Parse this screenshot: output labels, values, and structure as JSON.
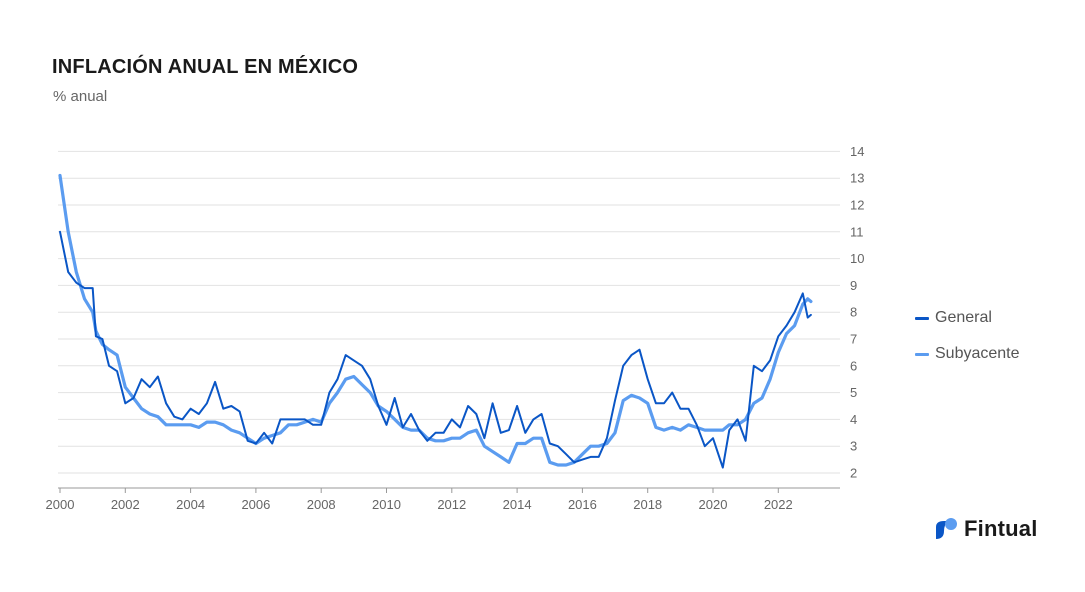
{
  "title": "INFLACIÓN ANUAL EN MÉXICO",
  "subtitle": "% anual",
  "brand": {
    "name": "Fintual",
    "logo_icon": "fintual-logo-icon"
  },
  "colors": {
    "general": "#0a56c6",
    "subyacente": "#5b9cf0",
    "grid": "#e2e2e2",
    "axis": "#999999"
  },
  "legend": [
    {
      "label": "General",
      "color": "#0a56c6"
    },
    {
      "label": "Subyacente",
      "color": "#5b9cf0"
    }
  ],
  "chart_data": {
    "type": "line",
    "title": "INFLACIÓN ANUAL EN MÉXICO",
    "ylabel": "% anual",
    "xlabel": "",
    "xlim": [
      2000,
      2023.5
    ],
    "ylim": [
      1.5,
      14
    ],
    "y_ticks": [
      "2",
      "3",
      "4",
      "5",
      "6",
      "7",
      "8",
      "9",
      "10",
      "11",
      "12",
      "13",
      "14"
    ],
    "x_ticks": [
      "2000",
      "2002",
      "2004",
      "2006",
      "2008",
      "2010",
      "2012",
      "2014",
      "2016",
      "2018",
      "2020",
      "2022"
    ],
    "grid": true,
    "legend_position": "right",
    "series": [
      {
        "name": "General",
        "x": [
          2000.0,
          2000.25,
          2000.5,
          2000.75,
          2001.0,
          2001.1,
          2001.3,
          2001.5,
          2001.75,
          2002.0,
          2002.25,
          2002.5,
          2002.75,
          2003.0,
          2003.25,
          2003.5,
          2003.75,
          2004.0,
          2004.25,
          2004.5,
          2004.75,
          2005.0,
          2005.25,
          2005.5,
          2005.75,
          2006.0,
          2006.25,
          2006.5,
          2006.75,
          2007.0,
          2007.25,
          2007.5,
          2007.75,
          2008.0,
          2008.25,
          2008.5,
          2008.75,
          2009.0,
          2009.25,
          2009.5,
          2009.75,
          2010.0,
          2010.25,
          2010.5,
          2010.75,
          2011.0,
          2011.25,
          2011.5,
          2011.75,
          2012.0,
          2012.25,
          2012.5,
          2012.75,
          2013.0,
          2013.25,
          2013.5,
          2013.75,
          2014.0,
          2014.25,
          2014.5,
          2014.75,
          2015.0,
          2015.25,
          2015.5,
          2015.75,
          2016.0,
          2016.25,
          2016.5,
          2016.75,
          2017.0,
          2017.25,
          2017.5,
          2017.75,
          2018.0,
          2018.25,
          2018.5,
          2018.75,
          2019.0,
          2019.25,
          2019.5,
          2019.75,
          2020.0,
          2020.3,
          2020.5,
          2020.75,
          2021.0,
          2021.25,
          2021.5,
          2021.75,
          2022.0,
          2022.25,
          2022.5,
          2022.75,
          2022.9,
          2023.0
        ],
        "values": [
          11.0,
          9.5,
          9.1,
          8.9,
          8.9,
          7.1,
          7.0,
          6.0,
          5.8,
          4.6,
          4.8,
          5.5,
          5.2,
          5.6,
          4.6,
          4.1,
          4.0,
          4.4,
          4.2,
          4.6,
          5.4,
          4.4,
          4.5,
          4.3,
          3.2,
          3.1,
          3.5,
          3.1,
          4.0,
          4.0,
          4.0,
          4.0,
          3.8,
          3.8,
          5.0,
          5.5,
          6.4,
          6.2,
          6.0,
          5.5,
          4.5,
          3.8,
          4.8,
          3.7,
          4.2,
          3.6,
          3.2,
          3.5,
          3.5,
          4.0,
          3.7,
          4.5,
          4.2,
          3.3,
          4.6,
          3.5,
          3.6,
          4.5,
          3.5,
          4.0,
          4.2,
          3.1,
          3.0,
          2.7,
          2.4,
          2.5,
          2.6,
          2.6,
          3.3,
          4.7,
          6.0,
          6.4,
          6.6,
          5.5,
          4.6,
          4.6,
          5.0,
          4.4,
          4.4,
          3.8,
          3.0,
          3.3,
          2.2,
          3.6,
          4.0,
          3.2,
          6.0,
          5.8,
          6.2,
          7.1,
          7.5,
          8.0,
          8.7,
          7.8,
          7.9
        ]
      },
      {
        "name": "Subyacente",
        "x": [
          2000.0,
          2000.25,
          2000.5,
          2000.75,
          2001.0,
          2001.1,
          2001.3,
          2001.5,
          2001.75,
          2002.0,
          2002.25,
          2002.5,
          2002.75,
          2003.0,
          2003.25,
          2003.5,
          2003.75,
          2004.0,
          2004.25,
          2004.5,
          2004.75,
          2005.0,
          2005.25,
          2005.5,
          2005.75,
          2006.0,
          2006.25,
          2006.5,
          2006.75,
          2007.0,
          2007.25,
          2007.5,
          2007.75,
          2008.0,
          2008.25,
          2008.5,
          2008.75,
          2009.0,
          2009.25,
          2009.5,
          2009.75,
          2010.0,
          2010.25,
          2010.5,
          2010.75,
          2011.0,
          2011.25,
          2011.5,
          2011.75,
          2012.0,
          2012.25,
          2012.5,
          2012.75,
          2013.0,
          2013.25,
          2013.5,
          2013.75,
          2014.0,
          2014.25,
          2014.5,
          2014.75,
          2015.0,
          2015.25,
          2015.5,
          2015.75,
          2016.0,
          2016.25,
          2016.5,
          2016.75,
          2017.0,
          2017.25,
          2017.5,
          2017.75,
          2018.0,
          2018.25,
          2018.5,
          2018.75,
          2019.0,
          2019.25,
          2019.5,
          2019.75,
          2020.0,
          2020.3,
          2020.5,
          2020.75,
          2021.0,
          2021.25,
          2021.5,
          2021.75,
          2022.0,
          2022.25,
          2022.5,
          2022.75,
          2022.9,
          2023.0
        ],
        "values": [
          13.1,
          11.0,
          9.5,
          8.5,
          8.0,
          7.3,
          6.8,
          6.6,
          6.4,
          5.2,
          4.8,
          4.4,
          4.2,
          4.1,
          3.8,
          3.8,
          3.8,
          3.8,
          3.7,
          3.9,
          3.9,
          3.8,
          3.6,
          3.5,
          3.3,
          3.1,
          3.3,
          3.4,
          3.5,
          3.8,
          3.8,
          3.9,
          4.0,
          3.9,
          4.6,
          5.0,
          5.5,
          5.6,
          5.3,
          5.0,
          4.5,
          4.3,
          4.0,
          3.7,
          3.6,
          3.6,
          3.3,
          3.2,
          3.2,
          3.3,
          3.3,
          3.5,
          3.6,
          3.0,
          2.8,
          2.6,
          2.4,
          3.1,
          3.1,
          3.3,
          3.3,
          2.4,
          2.3,
          2.3,
          2.4,
          2.7,
          3.0,
          3.0,
          3.1,
          3.5,
          4.7,
          4.9,
          4.8,
          4.6,
          3.7,
          3.6,
          3.7,
          3.6,
          3.8,
          3.7,
          3.6,
          3.6,
          3.6,
          3.8,
          3.8,
          4.0,
          4.6,
          4.8,
          5.5,
          6.5,
          7.2,
          7.5,
          8.3,
          8.5,
          8.4
        ]
      }
    ]
  }
}
